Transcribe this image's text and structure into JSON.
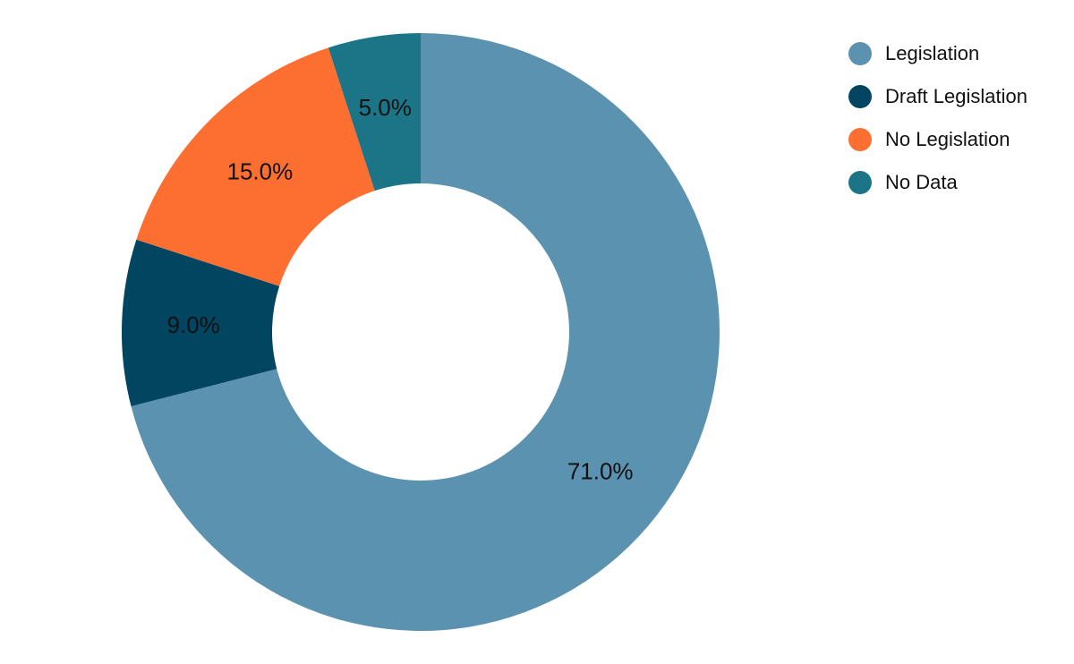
{
  "chart_data": {
    "type": "pie",
    "donut": true,
    "categories": [
      "Legislation",
      "Draft Legislation",
      "No Legislation",
      "No Data"
    ],
    "values": [
      71.0,
      9.0,
      15.0,
      5.0
    ],
    "labels": [
      "71.0%",
      "9.0%",
      "15.0%",
      "5.0%"
    ],
    "colors": [
      "#5a92b0",
      "#024560",
      "#fd6f31",
      "#1b7586"
    ],
    "legend_position": "top-right",
    "direction": "clockwise",
    "start": "top"
  }
}
